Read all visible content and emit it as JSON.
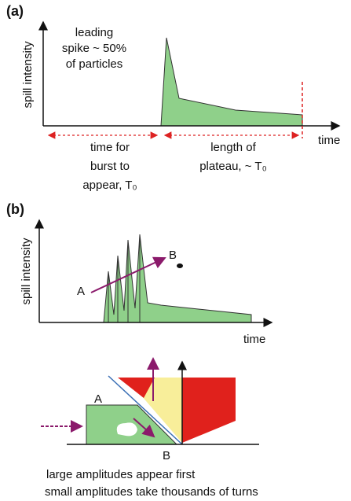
{
  "panel_a": {
    "label": "(a)",
    "spike_note": [
      "leading",
      "spike ~ 50%",
      "of particles"
    ],
    "y_axis": "spill intensity",
    "x_axis": "time",
    "burst_time": [
      "time for",
      "burst to",
      "appear, T₀"
    ],
    "plateau": [
      "length of",
      "plateau, ~ T₀"
    ]
  },
  "panel_b": {
    "label": "(b)",
    "y_axis": "spill intensity",
    "x_axis": "time",
    "point_a": "A",
    "point_b": "B"
  },
  "phase_space": {
    "point_a": "A",
    "point_b": "B",
    "caption": [
      "large amplitudes appear first",
      "small amplitudes take thousands of turns"
    ]
  }
}
